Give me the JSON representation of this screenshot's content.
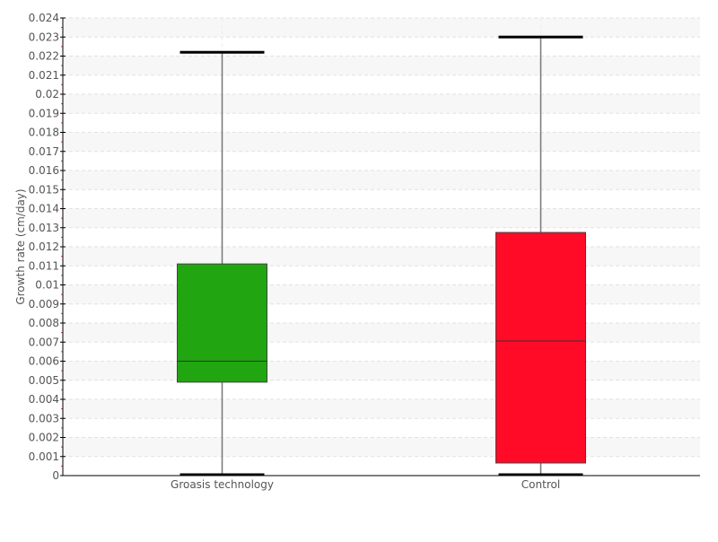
{
  "chart_data": {
    "type": "box",
    "title": "",
    "xlabel": "",
    "ylabel": "Growth rate (cm/day)",
    "ylim": [
      0,
      0.024
    ],
    "ytick_step": 0.001,
    "grid": true,
    "categories": [
      "Groasis technology",
      "Control"
    ],
    "boxes": [
      {
        "label": "Groasis technology",
        "min": 0,
        "q1": 0.0049,
        "median": 0.006,
        "q3": 0.0111,
        "max": 0.0222,
        "color": "#21a510"
      },
      {
        "label": "Control",
        "min": 0,
        "q1": 0.00066,
        "median": 0.00706,
        "q3": 0.01275,
        "max": 0.023,
        "color": "#ff0b28"
      }
    ]
  }
}
